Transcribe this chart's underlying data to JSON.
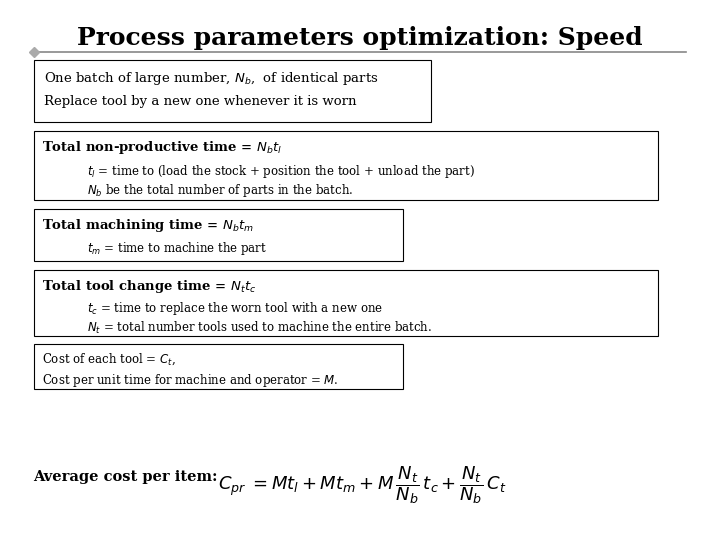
{
  "title": "Process parameters optimization: Speed",
  "background_color": "#ffffff",
  "title_fontsize": 18,
  "box1_lines": [
    "One batch of large number, $N_b$,  of identical parts",
    "Replace tool by a new one whenever it is worn"
  ],
  "box2_title": "Total non-productive time = $N_b t_l$",
  "box2_lines": [
    "$t_l$ = time to (load the stock + position the tool + unload the part)",
    "$N_b$ be the total number of parts in the batch."
  ],
  "box3_title": "Total machining time = $N_b t_m$",
  "box3_lines": [
    "$t_m$ = time to machine the part"
  ],
  "box4_title": "Total tool change time = $N_t t_c$",
  "box4_lines": [
    "$t_c$ = time to replace the worn tool with a new one",
    "$N_t$ = total number tools used to machine the entire batch."
  ],
  "box5_lines": [
    "Cost of each tool = $C_t$,",
    "Cost per unit time for machine and operator = $M$."
  ],
  "avg_label": "Average cost per item:",
  "formula": "$C_{pr}\\; = Mt_l + Mt_m + M\\,\\dfrac{N_t}{N_b}\\,t_c + \\dfrac{N_t}{N_b}\\,C_t$",
  "line_color": "#888888",
  "diamond_color": "#aaaaaa",
  "box_edge_color": "#000000",
  "text_color": "#000000"
}
